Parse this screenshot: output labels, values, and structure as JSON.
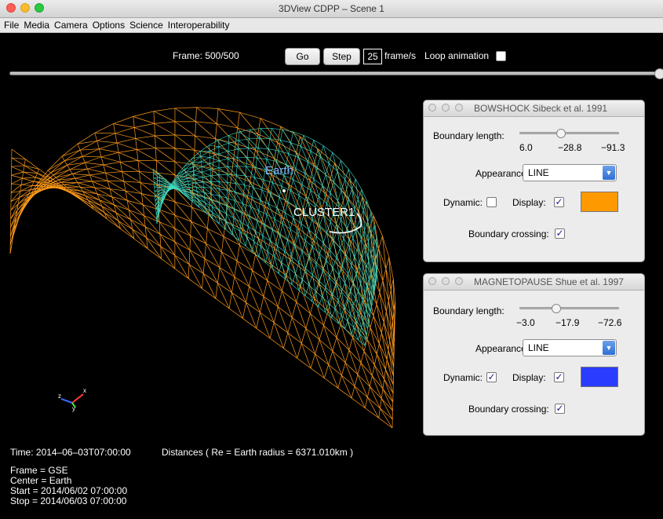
{
  "window": {
    "title": "3DView CDPP – Scene 1"
  },
  "menu": [
    "File",
    "Media",
    "Camera",
    "Options",
    "Science",
    "Interoperability"
  ],
  "controls": {
    "frame_label": "Frame: 500/500",
    "go_label": "Go",
    "step_label": "Step",
    "fps_value": "25",
    "fps_unit": "frame/s",
    "loop_label": "Loop animation",
    "loop_checked": false,
    "timeline_progress": 1.0
  },
  "scene": {
    "earth_label": "Earth",
    "spacecraft_label": "CLUSTER1",
    "bowshock_color": "#ff9a1a",
    "magnetopause_color": "#3fe0c8",
    "axes": {
      "x": "x",
      "y": "y",
      "z": "z"
    }
  },
  "panels": {
    "bowshock": {
      "title": "BOWSHOCK Sibeck et al. 1991",
      "boundary_length_label": "Boundary length:",
      "slider_values": [
        "6.0",
        "−28.8",
        "−91.3"
      ],
      "appearance_label": "Appearance:",
      "appearance_value": "LINE",
      "dynamic_label": "Dynamic:",
      "dynamic_checked": "",
      "display_label": "Display:",
      "display_checked": "✓",
      "color": "#ff9900",
      "crossing_label": "Boundary crossing:",
      "crossing_checked": "✓"
    },
    "magnetopause": {
      "title": "MAGNETOPAUSE Shue et al. 1997",
      "boundary_length_label": "Boundary length:",
      "slider_values": [
        "−3.0",
        "−17.9",
        "−72.6"
      ],
      "appearance_label": "Appearance:",
      "appearance_value": "LINE",
      "dynamic_label": "Dynamic:",
      "dynamic_checked": "✓",
      "display_label": "Display:",
      "display_checked": "✓",
      "color": "#2a3cff",
      "crossing_label": "Boundary crossing:",
      "crossing_checked": "✓"
    }
  },
  "info": {
    "time": "Time: 2014–06–03T07:00:00",
    "distances": "Distances ( Re = Earth radius = 6371.010km )",
    "frame": "Frame = GSE",
    "center": "Center = Earth",
    "start": "Start = 2014/06/02 07:00:00",
    "stop": "Stop = 2014/06/03 07:00:00"
  }
}
